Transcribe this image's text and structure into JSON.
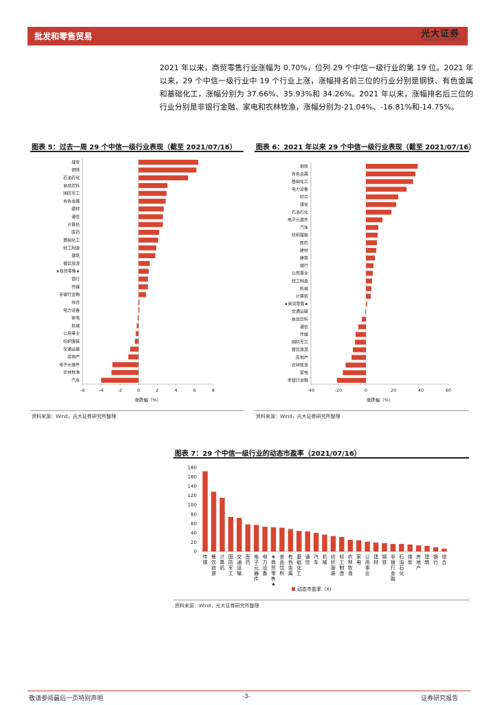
{
  "header": {
    "section": "批发和零售贸易",
    "logo_name": "光大证券",
    "logo_sub": "EVERBRIGHT SECURITIES"
  },
  "paragraph": "2021 年以来，商贸零售行业涨幅为 0.70%，位列 29 个中信一级行业的第 19 位。2021 年以来，29 个中信一级行业中 19 个行业上涨，涨幅排名前三位的行业分别是钢铁、有色金属和基础化工，涨幅分别为 37.66%、35.93%和 34.26%。2021 年以来，涨幅排名后三位的行业分别是非银行金融、家电和农林牧渔，涨幅分别为-21.04%、-16.81%和-14.75%。",
  "colors": {
    "bar": "#d64531",
    "accent": "#c43c31"
  },
  "chart_data": [
    {
      "type": "bar",
      "orientation": "horizontal",
      "title": "图表 5：过去一周 29 个中信一级行业表现（截至 2021/07/16）",
      "xlabel": "涨跌幅（%）",
      "xlim": [
        -6,
        8
      ],
      "xticks": [
        -6,
        -4,
        -2,
        0,
        2,
        4,
        6,
        8
      ],
      "categories": [
        "煤炭",
        "钢铁",
        "石油石化",
        "食品饮料",
        "国防军工",
        "有色金属",
        "建材",
        "通信",
        "计算机",
        "医药",
        "基础化工",
        "轻工制造",
        "建筑",
        "餐饮旅游",
        "★商贸零售★",
        "银行",
        "传媒",
        "非银行金融",
        "综合",
        "电力设备",
        "家电",
        "机械",
        "公用事业",
        "纺织服装",
        "交通运输",
        "房地产",
        "电子元器件",
        "农林牧渔",
        "汽车"
      ],
      "values": [
        6.4,
        6.2,
        5.3,
        3.1,
        3.0,
        2.9,
        2.7,
        2.6,
        2.6,
        2.2,
        2.1,
        1.9,
        1.8,
        1.2,
        1.1,
        1.0,
        1.0,
        0.8,
        0.1,
        0.1,
        -0.1,
        -0.2,
        -0.3,
        -0.4,
        -0.9,
        -1.1,
        -2.8,
        -2.9,
        -4.0
      ],
      "source": "资料来源：Wind，光大证券研究所整理"
    },
    {
      "type": "bar",
      "orientation": "horizontal",
      "title": "图表 6：2021 年以来 29 个中信一级行业表现（截至 2021/07/16）",
      "xlabel": "涨跌幅（%）",
      "xlim": [
        -40,
        60
      ],
      "xticks": [
        -40,
        -20,
        0,
        20,
        40,
        60
      ],
      "categories": [
        "钢铁",
        "有色金属",
        "基础化工",
        "电力设备",
        "综合",
        "煤炭",
        "石油石化",
        "电子元器件",
        "汽车",
        "纺织服装",
        "医药",
        "建材",
        "建筑",
        "银行",
        "公用事业",
        "轻工制造",
        "机械",
        "计算机",
        "★商贸零售★",
        "交通运输",
        "食品饮料",
        "通信",
        "传媒",
        "国防军工",
        "餐饮旅游",
        "房地产",
        "农林牧渔",
        "家电",
        "非银行金融"
      ],
      "values": [
        37.66,
        35.93,
        34.26,
        29.5,
        23.5,
        22.0,
        18.5,
        12.0,
        9.0,
        8.5,
        8.0,
        7.5,
        6.5,
        5.5,
        5.0,
        4.5,
        4.0,
        3.5,
        0.7,
        -0.5,
        -3.0,
        -5.5,
        -7.5,
        -8.0,
        -9.5,
        -10.5,
        -14.75,
        -16.81,
        -21.04
      ],
      "source": "资料来源：Wind，光大证券研究所整理"
    },
    {
      "type": "bar",
      "orientation": "vertical",
      "title": "图表 7：29 个中信一级行业的动态市盈率（2021/07/16）",
      "legend": "动态市盈率（X）",
      "ylim": [
        0,
        180
      ],
      "yticks": [
        0,
        20,
        40,
        60,
        80,
        100,
        120,
        140,
        160,
        180
      ],
      "categories": [
        "传媒",
        "餐饮旅游",
        "计算机",
        "国防军工",
        "交通运输",
        "医药",
        "电子元器件",
        "电力设备",
        "★商贸零售★",
        "食品饮料",
        "有色金属",
        "基础化工",
        "通信",
        "汽车",
        "机械",
        "纺织服装",
        "轻工制造",
        "农林牧渔",
        "家电",
        "公用事业",
        "建材",
        "钢铁",
        "非银行金融",
        "石油石化",
        "煤炭",
        "房地产",
        "建筑",
        "银行",
        "综合"
      ],
      "values": [
        172,
        128,
        115,
        74,
        72,
        58,
        57,
        53,
        52,
        51,
        48,
        44,
        43,
        40,
        36,
        33,
        31,
        25,
        24,
        21,
        19,
        18,
        16,
        16,
        15,
        13,
        12,
        9,
        6
      ],
      "source": "资料来源：Wind，光大证券研究所整理"
    }
  ],
  "footer": {
    "left": "敬请参阅最后一页特别声明",
    "center": "-3-",
    "right": "证券研究报告"
  }
}
